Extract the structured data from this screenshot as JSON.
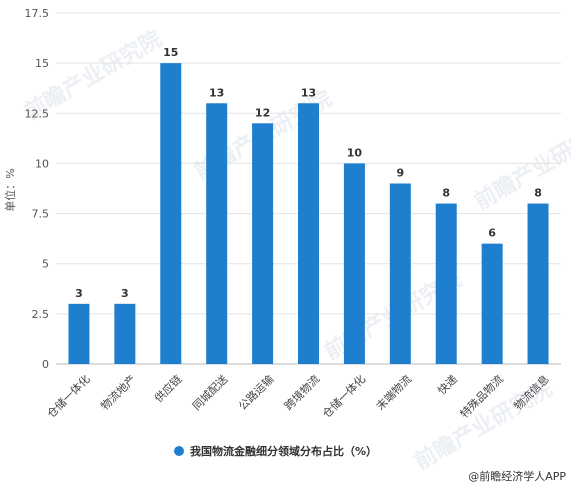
{
  "chart_data": {
    "type": "bar",
    "categories": [
      "仓储一体化",
      "物流地产",
      "供应链",
      "同城配送",
      "公路运输",
      "跨境物流",
      "仓储一体化",
      "末端物流",
      "快递",
      "特殊品物流",
      "物流信息"
    ],
    "series": [
      {
        "name": "我国物流金融细分领域分布占比（%）",
        "values": [
          3,
          3,
          15,
          13,
          12,
          13,
          10,
          9,
          8,
          6,
          8
        ],
        "color": "#1e7fce"
      }
    ],
    "ylabel": "单位：%",
    "xlabel": "",
    "ylim": [
      0,
      17.5
    ],
    "yticks": [
      "0",
      "2.5",
      "5",
      "7.5",
      "10",
      "12.5",
      "15",
      "17.5"
    ],
    "grid": true,
    "legend_position": "bottom"
  },
  "footer": {
    "source": "@前瞻经济学人APP"
  },
  "watermark": {
    "text": "前瞻产业研究院"
  }
}
